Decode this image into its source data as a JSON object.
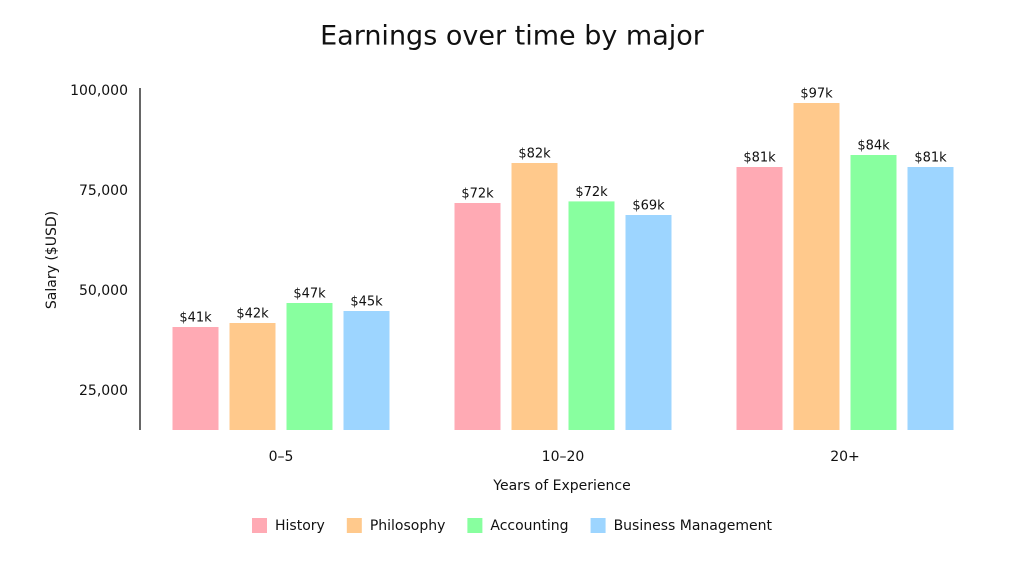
{
  "chart_data": {
    "type": "bar",
    "title": "Earnings over time by major",
    "x_label": "Years of Experience",
    "y_label": "Salary ($USD)",
    "categories": [
      "0–5",
      "10–20",
      "20+"
    ],
    "series": [
      {
        "name": "History",
        "color": "#ffaab4",
        "values": [
          41000,
          72000,
          81000
        ],
        "value_labels": [
          "$41k",
          "$72k",
          "$81k"
        ]
      },
      {
        "name": "Philosophy",
        "color": "#ffc98c",
        "values": [
          42000,
          82000,
          97000
        ],
        "value_labels": [
          "$42k",
          "$82k",
          "$97k"
        ]
      },
      {
        "name": "Accounting",
        "color": "#88ff9f",
        "values": [
          47000,
          72400,
          84000
        ],
        "value_labels": [
          "$47k",
          "$72k",
          "$84k"
        ]
      },
      {
        "name": "Business Management",
        "color": "#9dd5ff",
        "values": [
          45000,
          69000,
          81000
        ],
        "value_labels": [
          "$45k",
          "$69k",
          "$81k"
        ]
      }
    ],
    "ylim": [
      15250,
      100750
    ],
    "yticks": [
      {
        "value": 25000,
        "label": "25,000"
      },
      {
        "value": 50000,
        "label": "50,000"
      },
      {
        "value": 75000,
        "label": "75,000"
      },
      {
        "value": 100000,
        "label": "100,000"
      }
    ],
    "grid": false,
    "legend": "bottom"
  }
}
